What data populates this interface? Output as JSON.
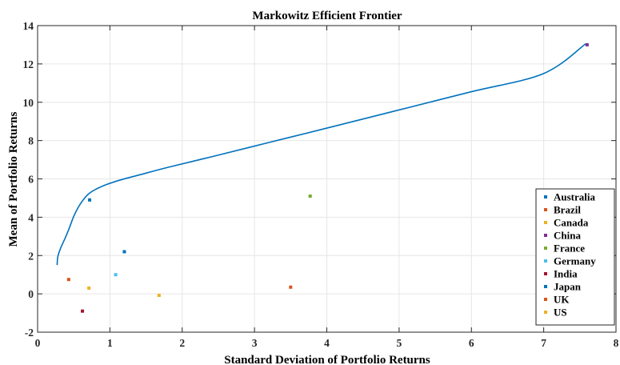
{
  "chart_data": {
    "type": "scatter",
    "title": "Markowitz Efficient Frontier",
    "xlabel": "Standard Deviation of Portfolio Returns",
    "ylabel": "Mean of Portfolio Returns",
    "xlim": [
      0,
      8
    ],
    "ylim": [
      -2,
      14
    ],
    "xticks": [
      0,
      1,
      2,
      3,
      4,
      5,
      6,
      7,
      8
    ],
    "yticks": [
      -2,
      0,
      2,
      4,
      6,
      8,
      10,
      12,
      14
    ],
    "grid": true,
    "legend_position": "bottom-right",
    "frontier": {
      "color": "#0072BD",
      "x": [
        0.27,
        0.28,
        0.32,
        0.38,
        0.44,
        0.5,
        0.56,
        0.62,
        0.7,
        0.8,
        0.95,
        1.15,
        1.4,
        1.8,
        2.4,
        3.2,
        4.0,
        5.0,
        6.0,
        7.0,
        7.58
      ],
      "y": [
        1.5,
        1.95,
        2.4,
        2.9,
        3.45,
        4.05,
        4.5,
        4.85,
        5.2,
        5.45,
        5.7,
        5.95,
        6.2,
        6.6,
        7.15,
        7.9,
        8.65,
        9.6,
        10.55,
        11.5,
        13.05
      ]
    },
    "series": [
      {
        "name": "Australia",
        "color": "#0072BD",
        "x": 0.72,
        "y": 4.9
      },
      {
        "name": "Brazil",
        "color": "#D95319",
        "x": 3.5,
        "y": 0.35
      },
      {
        "name": "Canada",
        "color": "#EDB120",
        "x": 1.68,
        "y": -0.08
      },
      {
        "name": "China",
        "color": "#7E2F8E",
        "x": 7.6,
        "y": 13.0
      },
      {
        "name": "France",
        "color": "#77AC30",
        "x": 3.77,
        "y": 5.1
      },
      {
        "name": "Germany",
        "color": "#4DBEEE",
        "x": 1.08,
        "y": 1.0
      },
      {
        "name": "India",
        "color": "#A2142F",
        "x": 0.62,
        "y": -0.9
      },
      {
        "name": "Japan",
        "color": "#0072BD",
        "x": 1.2,
        "y": 2.2
      },
      {
        "name": "UK",
        "color": "#D95319",
        "x": 0.43,
        "y": 0.75
      },
      {
        "name": "US",
        "color": "#EDB120",
        "x": 0.71,
        "y": 0.3
      }
    ]
  }
}
